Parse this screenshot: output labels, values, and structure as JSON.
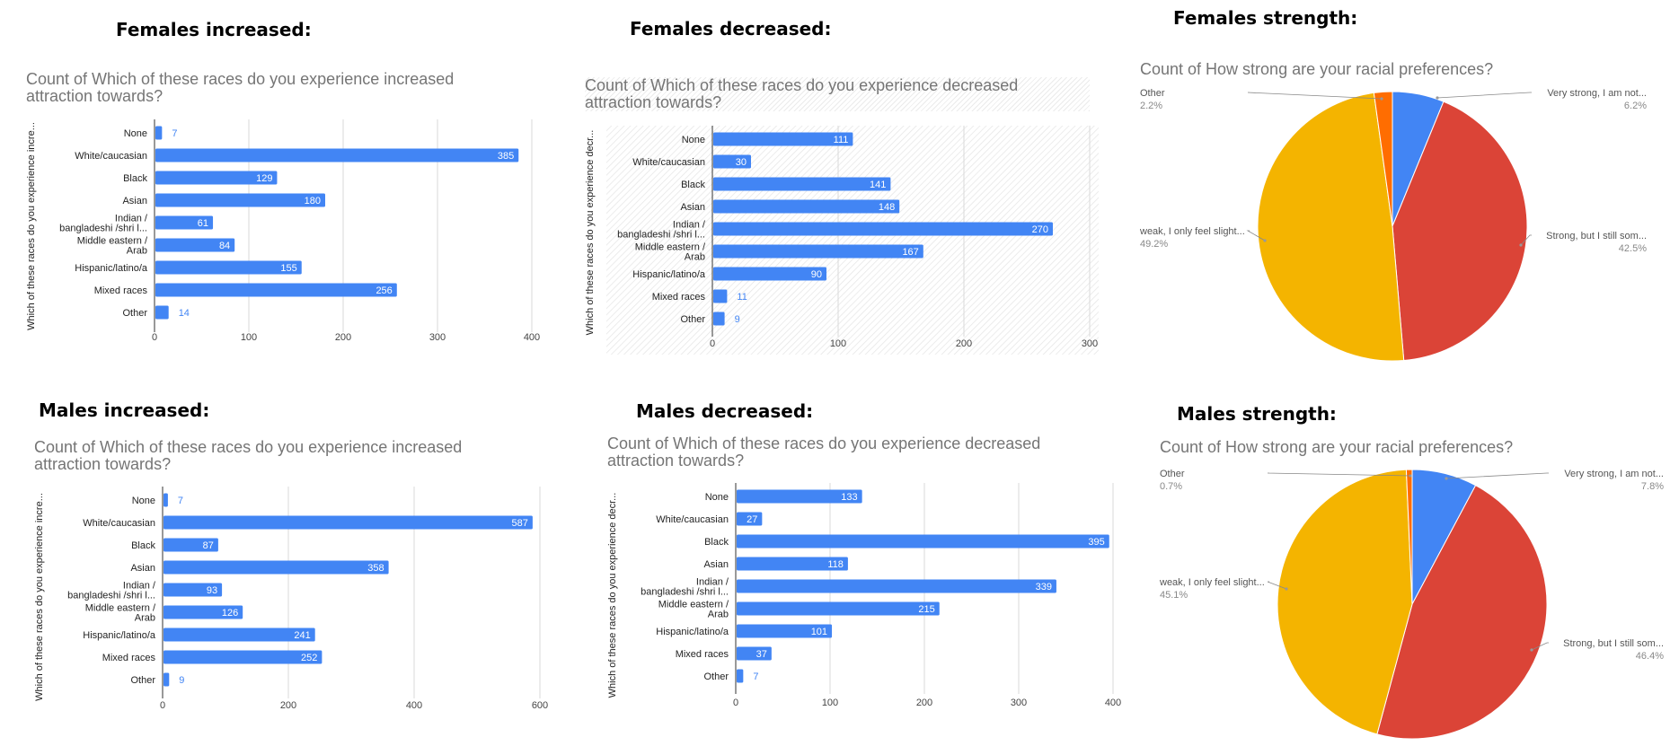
{
  "headings": {
    "f_inc": "Females increased:",
    "f_dec": "Females decreased:",
    "f_str": "Females strength:",
    "m_inc": "Males increased:",
    "m_dec": "Males decreased:",
    "m_str": "Males strength:"
  },
  "colors": {
    "bar": "#4285F4",
    "very_strong": "#4285F4",
    "strong": "#DB4437",
    "weak": "#F4B400",
    "other": "#FF6D01",
    "grid": "#d9d9d9"
  },
  "chart_data": [
    {
      "id": "f_inc",
      "type": "bar",
      "orientation": "horizontal",
      "title": "Count of Which of these races do you experience increased\nattraction towards?",
      "ylabel": "Which of these races do you experience incre...",
      "categories": [
        "None",
        "White/caucasian",
        "Black",
        "Asian",
        "Indian /\nbangladeshi /shri l...",
        "Middle eastern /\nArab",
        "Hispanic/latino/a",
        "Mixed races",
        "Other"
      ],
      "values": [
        7,
        385,
        129,
        180,
        61,
        84,
        155,
        256,
        14
      ],
      "ticks": [
        "0",
        "100",
        "200",
        "300",
        "400"
      ],
      "xlim": [
        0,
        400
      ],
      "grid": true
    },
    {
      "id": "f_dec",
      "type": "bar",
      "orientation": "horizontal",
      "title": "Count of Which of these races do you experience decreased\nattraction towards?",
      "ylabel": "Which of these races do you experience decr...",
      "categories": [
        "None",
        "White/caucasian",
        "Black",
        "Asian",
        "Indian /\nbangladeshi /shri l...",
        "Middle eastern /\nArab",
        "Hispanic/latino/a",
        "Mixed races",
        "Other"
      ],
      "values": [
        111,
        30,
        141,
        148,
        270,
        167,
        90,
        11,
        9
      ],
      "ticks": [
        "0",
        "100",
        "200",
        "300"
      ],
      "xlim": [
        0,
        300
      ],
      "grid": true
    },
    {
      "id": "f_str",
      "type": "pie",
      "title": "Count of How strong are your racial preferences?",
      "labels": [
        "Very strong, I am not...",
        "Strong, but I still som...",
        "weak, I only feel slight...",
        "Other"
      ],
      "percents": [
        "6.2%",
        "42.5%",
        "49.2%",
        "2.2%"
      ],
      "values": [
        6.2,
        42.5,
        49.2,
        2.2
      ]
    },
    {
      "id": "m_inc",
      "type": "bar",
      "orientation": "horizontal",
      "title": "Count of Which of these races do you experience increased\nattraction towards?",
      "ylabel": "Which of these races do you experience incre...",
      "categories": [
        "None",
        "White/caucasian",
        "Black",
        "Asian",
        "Indian /\nbangladeshi /shri l...",
        "Middle eastern /\nArab",
        "Hispanic/latino/a",
        "Mixed races",
        "Other"
      ],
      "values": [
        7,
        587,
        87,
        358,
        93,
        126,
        241,
        252,
        9
      ],
      "ticks": [
        "0",
        "200",
        "400",
        "600"
      ],
      "xlim": [
        0,
        600
      ],
      "grid": true
    },
    {
      "id": "m_dec",
      "type": "bar",
      "orientation": "horizontal",
      "title": "Count of Which of these races do you experience decreased\nattraction towards?",
      "ylabel": "Which of these races do you experience decr...",
      "categories": [
        "None",
        "White/caucasian",
        "Black",
        "Asian",
        "Indian /\nbangladeshi /shri l...",
        "Middle eastern /\nArab",
        "Hispanic/latino/a",
        "Mixed races",
        "Other"
      ],
      "values": [
        133,
        27,
        395,
        118,
        339,
        215,
        101,
        37,
        7
      ],
      "ticks": [
        "0",
        "100",
        "200",
        "300",
        "400"
      ],
      "xlim": [
        0,
        400
      ],
      "grid": true
    },
    {
      "id": "m_str",
      "type": "pie",
      "title": "Count of How strong are your racial preferences?",
      "labels": [
        "Very strong, I am not...",
        "Strong, but I still som...",
        "weak, I only feel slight...",
        "Other"
      ],
      "percents": [
        "7.8%",
        "46.4%",
        "45.1%",
        "0.7%"
      ],
      "values": [
        7.8,
        46.4,
        45.1,
        0.7
      ]
    }
  ]
}
